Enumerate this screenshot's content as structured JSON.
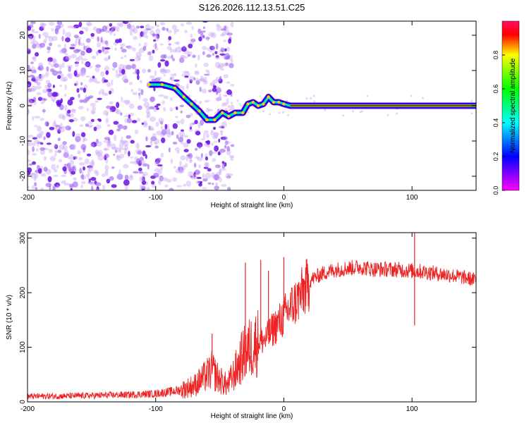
{
  "title": "S126.2026.112.13.51.C25",
  "chart_data": [
    {
      "type": "heatmap",
      "name": "spectrogram",
      "title": "S126.2026.112.13.51.C25",
      "xlabel": "Height of straight line (km)",
      "ylabel": "Frequency (Hz)",
      "xlim": [
        -200,
        150
      ],
      "ylim": [
        -24,
        24
      ],
      "xticks": [
        -200,
        -100,
        0,
        100
      ],
      "yticks": [
        -20,
        -10,
        0,
        10,
        20
      ],
      "colorbar": {
        "label": "Normalized spectral amplitude",
        "range": [
          0.0,
          1.0
        ],
        "ticks": [
          0.0,
          0.2,
          0.4,
          0.6,
          0.8
        ],
        "tick_labels": [
          "0.0",
          "0.2",
          "0.4",
          "0.6",
          "0.8"
        ],
        "colors": [
          "#ff00ff",
          "#0000ff",
          "#00ffff",
          "#00ff00",
          "#ffff00",
          "#ff0000"
        ]
      },
      "tone_track": [
        {
          "x": -105,
          "f": 6
        },
        {
          "x": -95,
          "f": 6
        },
        {
          "x": -85,
          "f": 5
        },
        {
          "x": -78,
          "f": 2.5
        },
        {
          "x": -72,
          "f": 0.5
        },
        {
          "x": -66,
          "f": -1.5
        },
        {
          "x": -60,
          "f": -4
        },
        {
          "x": -54,
          "f": -4
        },
        {
          "x": -48,
          "f": -2
        },
        {
          "x": -43,
          "f": -3
        },
        {
          "x": -38,
          "f": -2
        },
        {
          "x": -32,
          "f": -2
        },
        {
          "x": -28,
          "f": 0.5
        },
        {
          "x": -24,
          "f": 1
        },
        {
          "x": -20,
          "f": 0
        },
        {
          "x": -16,
          "f": 0.5
        },
        {
          "x": -12,
          "f": 2.5
        },
        {
          "x": -8,
          "f": 1
        },
        {
          "x": -4,
          "f": 1
        },
        {
          "x": 0,
          "f": 0.5
        },
        {
          "x": 5,
          "f": 0
        },
        {
          "x": 150,
          "f": 0
        }
      ],
      "noise_region": {
        "x_from": -200,
        "x_to": -50,
        "freq_extent": 24
      }
    },
    {
      "type": "line",
      "name": "snr",
      "xlabel": "Height of straight line (km)",
      "ylabel": "SNR (10 * v/v)",
      "xlim": [
        -200,
        150
      ],
      "ylim": [
        0,
        310
      ],
      "xticks": [
        -200,
        -100,
        0,
        100
      ],
      "yticks": [
        0,
        100,
        200,
        300
      ],
      "color": "#ee2222",
      "series": [
        {
          "name": "SNR",
          "x": [
            -200,
            -160,
            -120,
            -100,
            -90,
            -80,
            -70,
            -62,
            -56,
            -50,
            -44,
            -38,
            -32,
            -26,
            -20,
            -14,
            -8,
            -2,
            4,
            10,
            16,
            22,
            30,
            40,
            50,
            60,
            70,
            80,
            90,
            100,
            110,
            120,
            130,
            140,
            150
          ],
          "y": [
            10,
            11,
            13,
            15,
            18,
            22,
            30,
            45,
            58,
            40,
            30,
            55,
            85,
            100,
            110,
            115,
            135,
            150,
            170,
            185,
            205,
            225,
            235,
            242,
            245,
            247,
            243,
            243,
            242,
            240,
            238,
            235,
            232,
            228,
            223
          ]
        }
      ],
      "spikes": [
        {
          "x": -56,
          "y": 125
        },
        {
          "x": -30,
          "y": 255
        },
        {
          "x": -18,
          "y": 260
        },
        {
          "x": -12,
          "y": 240
        },
        {
          "x": 0,
          "y": 265
        },
        {
          "x": 102,
          "y": 310
        },
        {
          "x": 102,
          "y": 140
        }
      ]
    }
  ]
}
